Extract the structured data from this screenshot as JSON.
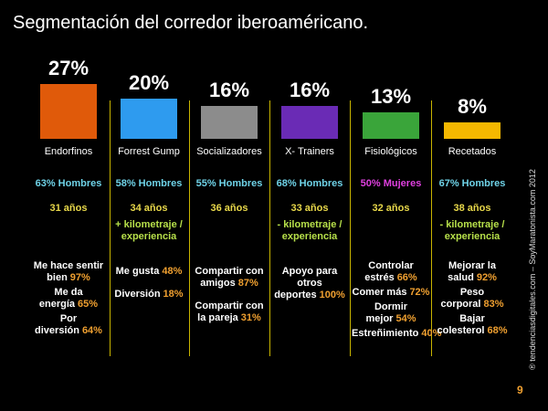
{
  "chart_data": {
    "type": "bar",
    "title": "Segmentación del corredor iberoaméricano.",
    "categories": [
      "Endorfinos",
      "Forrest Gump",
      "Socializadores",
      "X- Trainers",
      "Fisiológicos",
      "Recetados"
    ],
    "values": [
      27,
      20,
      16,
      16,
      13,
      8
    ],
    "value_labels": [
      "27%",
      "20%",
      "16%",
      "16%",
      "13%",
      "8%"
    ],
    "colors": [
      "#e05a0a",
      "#2e9bef",
      "#8c8c8c",
      "#6a2bb5",
      "#3aa53a",
      "#f5b800"
    ],
    "gender": [
      {
        "text": "63% Hombres",
        "color": "#6fd3e8"
      },
      {
        "text": "58% Hombres",
        "color": "#6fd3e8"
      },
      {
        "text": "55% Hombres",
        "color": "#6fd3e8"
      },
      {
        "text": "68% Hombres",
        "color": "#6fd3e8"
      },
      {
        "text": "50% Mujeres",
        "color": "#e040e0"
      },
      {
        "text": "67% Hombres",
        "color": "#6fd3e8"
      }
    ],
    "age": [
      "31 años",
      "34 años",
      "36 años",
      "33 años",
      "32 años",
      "38 años"
    ],
    "notes": [
      null,
      "+ kilometraje / experiencia",
      null,
      "- kilometraje / experiencia",
      null,
      "- kilometraje / experiencia"
    ],
    "reasons": [
      [
        {
          "text": "Me hace sentir bien",
          "pct": "97%"
        },
        {
          "text": "Me da energía",
          "pct": "65%"
        },
        {
          "text": "Por diversión",
          "pct": "64%"
        }
      ],
      [
        {
          "text": "Me gusta",
          "pct": "48%"
        },
        {
          "text": "Diversión",
          "pct": "18%"
        }
      ],
      [
        {
          "text": "Compartir con amigos",
          "pct": "87%"
        },
        {
          "text": "Compartir con la pareja",
          "pct": "31%"
        }
      ],
      [
        {
          "text": "Apoyo para otros deportes",
          "pct": "100%"
        }
      ],
      [
        {
          "text": "Controlar estrés",
          "pct": "66%"
        },
        {
          "text": "Comer más",
          "pct": "72%"
        },
        {
          "text": "Dormir mejor",
          "pct": "54%"
        },
        {
          "text": "Estreñimiento",
          "pct": "40%"
        }
      ],
      [
        {
          "text": "Mejorar la salud",
          "pct": "92%"
        },
        {
          "text": "Peso corporal",
          "pct": "83%"
        },
        {
          "text": "Bajar colesterol",
          "pct": "68%"
        }
      ]
    ],
    "source": "® tendenciasdigitales.com – SoyMaratonista.com 2012",
    "page": "9"
  }
}
